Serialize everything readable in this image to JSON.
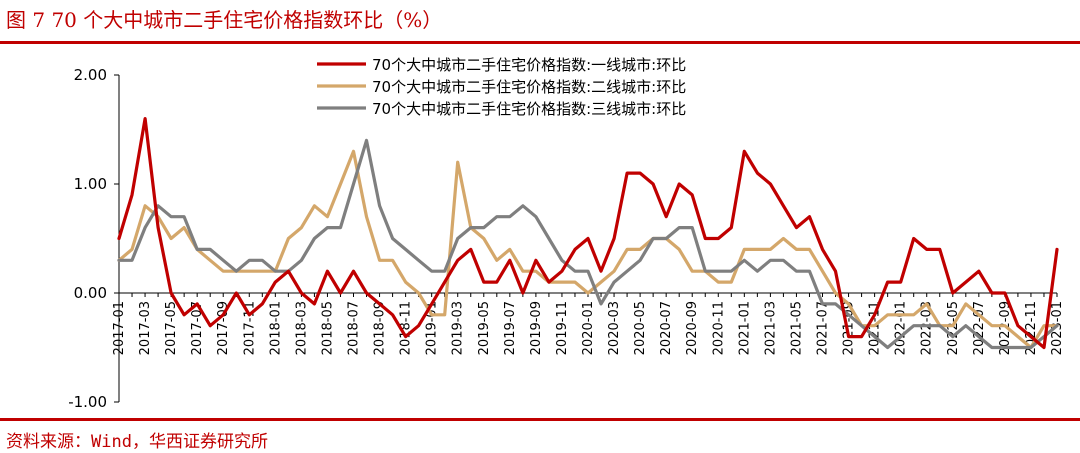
{
  "header": {
    "title": "图 7 70 个大中城市二手住宅价格指数环比（%）"
  },
  "footer": {
    "source": "资料来源：Wind，华西证券研究所"
  },
  "chart_data": {
    "type": "line",
    "title": "",
    "xlabel": "",
    "ylabel": "",
    "ylim": [
      -1.0,
      2.0
    ],
    "yticks": [
      "2.00",
      "1.00",
      "0.00",
      "-1.00"
    ],
    "ytick_values": [
      2.0,
      1.0,
      0.0,
      -1.0
    ],
    "grid": false,
    "legend_position": "top-right",
    "x": [
      "2017-01",
      "2017-02",
      "2017-03",
      "2017-04",
      "2017-05",
      "2017-06",
      "2017-07",
      "2017-08",
      "2017-09",
      "2017-10",
      "2017-11",
      "2017-12",
      "2018-01",
      "2018-02",
      "2018-03",
      "2018-04",
      "2018-05",
      "2018-06",
      "2018-07",
      "2018-08",
      "2018-09",
      "2018-10",
      "2018-11",
      "2018-12",
      "2019-01",
      "2019-02",
      "2019-03",
      "2019-04",
      "2019-05",
      "2019-06",
      "2019-07",
      "2019-08",
      "2019-09",
      "2019-10",
      "2019-11",
      "2019-12",
      "2020-01",
      "2020-02",
      "2020-03",
      "2020-04",
      "2020-05",
      "2020-06",
      "2020-07",
      "2020-08",
      "2020-09",
      "2020-10",
      "2020-11",
      "2020-12",
      "2021-01",
      "2021-02",
      "2021-03",
      "2021-04",
      "2021-05",
      "2021-06",
      "2021-07",
      "2021-08",
      "2021-09",
      "2021-10",
      "2021-11",
      "2021-12",
      "2022-01",
      "2022-02",
      "2022-03",
      "2022-04",
      "2022-05",
      "2022-06",
      "2022-07",
      "2022-08",
      "2022-09",
      "2022-10",
      "2022-11",
      "2022-12",
      "2023-01"
    ],
    "xticks": [
      "2017-01",
      "2017-03",
      "2017-05",
      "2017-07",
      "2017-09",
      "2017-11",
      "2018-01",
      "2018-03",
      "2018-05",
      "2018-07",
      "2018-09",
      "2018-11",
      "2019-01",
      "2019-03",
      "2019-05",
      "2019-07",
      "2019-09",
      "2019-11",
      "2020-01",
      "2020-03",
      "2020-05",
      "2020-07",
      "2020-09",
      "2020-11",
      "2021-01",
      "2021-03",
      "2021-05",
      "2021-07",
      "2021-09",
      "2021-11",
      "2022-01",
      "2022-03",
      "2022-05",
      "2022-07",
      "2022-09",
      "2022-11",
      "2023-01"
    ],
    "series": [
      {
        "name": "70个大中城市二手住宅价格指数:一线城市:环比",
        "color": "#c00000",
        "values": [
          0.5,
          0.9,
          1.6,
          0.6,
          0.0,
          -0.2,
          -0.1,
          -0.3,
          -0.2,
          0.0,
          -0.2,
          -0.1,
          0.1,
          0.2,
          0.0,
          -0.1,
          0.2,
          0.0,
          0.2,
          0.0,
          -0.1,
          -0.2,
          -0.4,
          -0.3,
          -0.1,
          0.1,
          0.3,
          0.4,
          0.1,
          0.1,
          0.3,
          0.0,
          0.3,
          0.1,
          0.2,
          0.4,
          0.5,
          0.2,
          0.5,
          1.1,
          1.1,
          1.0,
          0.7,
          1.0,
          0.9,
          0.5,
          0.5,
          0.6,
          1.3,
          1.1,
          1.0,
          0.8,
          0.6,
          0.7,
          0.4,
          0.2,
          -0.4,
          -0.4,
          -0.2,
          0.1,
          0.1,
          0.5,
          0.4,
          0.4,
          0.0,
          0.1,
          0.2,
          0.0,
          0.0,
          -0.3,
          -0.4,
          -0.5,
          0.4
        ]
      },
      {
        "name": "70个大中城市二手住宅价格指数:二线城市:环比",
        "color": "#d4a76a",
        "values": [
          0.3,
          0.4,
          0.8,
          0.7,
          0.5,
          0.6,
          0.4,
          0.3,
          0.2,
          0.2,
          0.2,
          0.2,
          0.2,
          0.5,
          0.6,
          0.8,
          0.7,
          1.0,
          1.3,
          0.7,
          0.3,
          0.3,
          0.1,
          0.0,
          -0.2,
          -0.2,
          1.2,
          0.6,
          0.5,
          0.3,
          0.4,
          0.2,
          0.2,
          0.1,
          0.1,
          0.1,
          0.0,
          0.1,
          0.2,
          0.4,
          0.4,
          0.5,
          0.5,
          0.4,
          0.2,
          0.2,
          0.1,
          0.1,
          0.4,
          0.4,
          0.4,
          0.5,
          0.4,
          0.4,
          0.2,
          0.0,
          -0.1,
          -0.3,
          -0.3,
          -0.2,
          -0.2,
          -0.2,
          -0.1,
          -0.3,
          -0.3,
          -0.1,
          -0.2,
          -0.3,
          -0.3,
          -0.4,
          -0.5,
          -0.3,
          -0.3
        ]
      },
      {
        "name": "70个大中城市二手住宅价格指数:三线城市:环比",
        "color": "#7f7f7f",
        "values": [
          0.3,
          0.3,
          0.6,
          0.8,
          0.7,
          0.7,
          0.4,
          0.4,
          0.3,
          0.2,
          0.3,
          0.3,
          0.2,
          0.2,
          0.3,
          0.5,
          0.6,
          0.6,
          1.0,
          1.4,
          0.8,
          0.5,
          0.4,
          0.3,
          0.2,
          0.2,
          0.5,
          0.6,
          0.6,
          0.7,
          0.7,
          0.8,
          0.7,
          0.5,
          0.3,
          0.2,
          0.2,
          -0.1,
          0.1,
          0.2,
          0.3,
          0.5,
          0.5,
          0.6,
          0.6,
          0.2,
          0.2,
          0.2,
          0.3,
          0.2,
          0.3,
          0.3,
          0.2,
          0.2,
          -0.1,
          -0.1,
          -0.2,
          -0.3,
          -0.4,
          -0.5,
          -0.4,
          -0.3,
          -0.3,
          -0.3,
          -0.4,
          -0.3,
          -0.4,
          -0.5,
          -0.5,
          -0.5,
          -0.5,
          -0.4,
          -0.3
        ]
      }
    ]
  }
}
